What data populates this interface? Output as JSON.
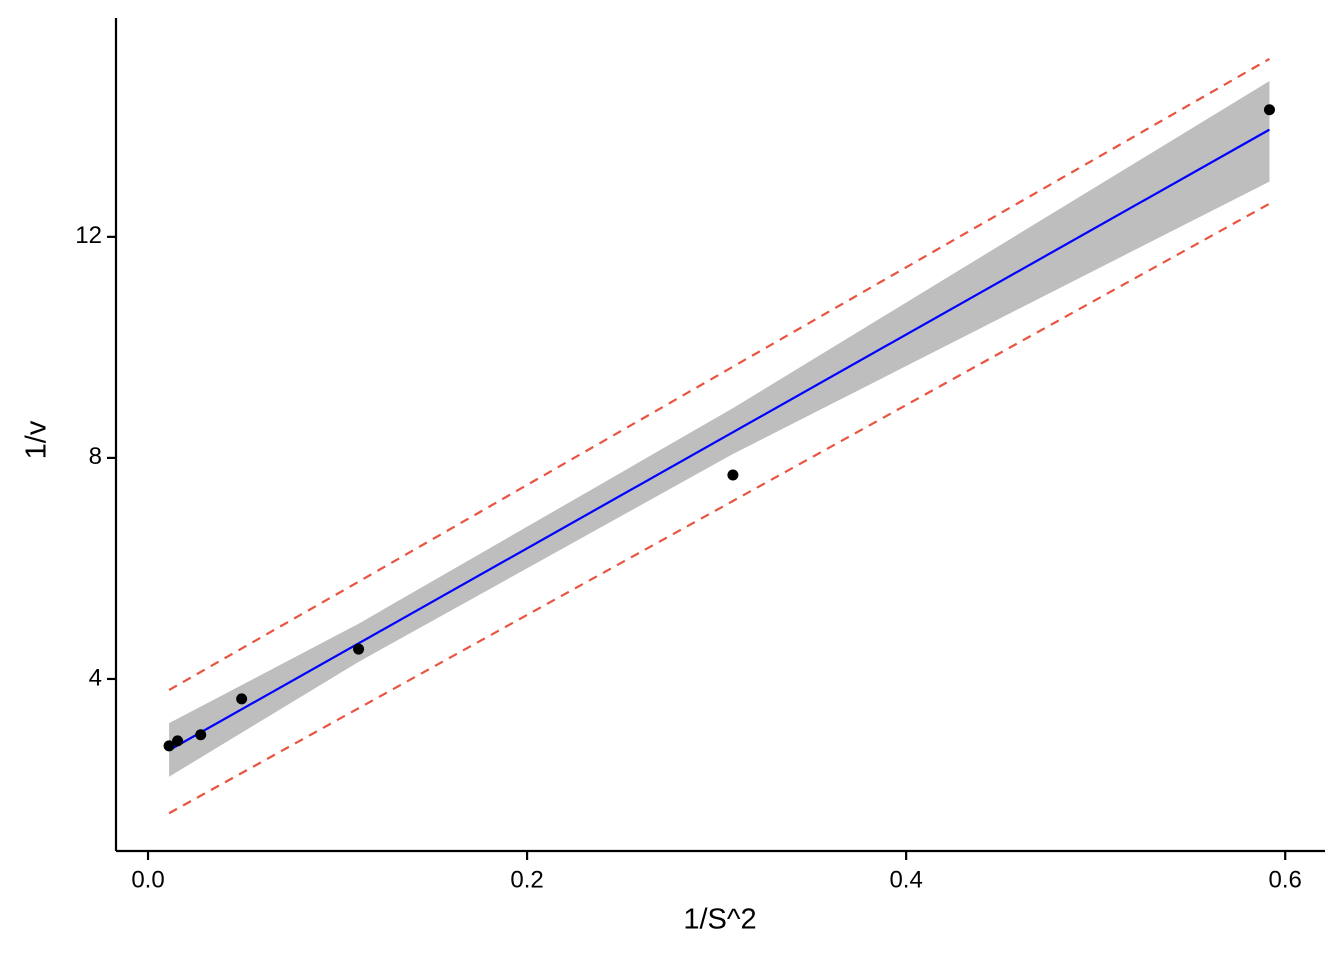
{
  "chart_data": {
    "type": "scatter",
    "x_label": "1/S^2",
    "y_label": "1/v",
    "x": [
      0.0111,
      0.0156,
      0.0278,
      0.0494,
      0.1111,
      0.3086,
      0.5917
    ],
    "values": [
      2.79,
      2.88,
      2.99,
      3.64,
      4.54,
      7.69,
      14.3
    ],
    "color": "#000000",
    "fit": {
      "x": [
        0.0111,
        0.5917
      ],
      "values": [
        2.71,
        13.94
      ],
      "color": "#0000ff"
    },
    "confidence_band": {
      "x": [
        0.0111,
        0.1111,
        0.3086,
        0.5917
      ],
      "lower": [
        2.23,
        4.31,
        8.07,
        13.0
      ],
      "upper": [
        3.2,
        5.0,
        8.9,
        14.82
      ],
      "color": "#bebebe"
    },
    "prediction_interval": {
      "x": [
        0.0111,
        0.1111,
        0.3086,
        0.5917
      ],
      "lower": [
        1.57,
        3.47,
        7.22,
        12.6
      ],
      "upper": [
        3.8,
        5.76,
        9.65,
        15.22
      ],
      "color": "#e8543f"
    },
    "xlim": [
      -0.0169,
      0.621
    ],
    "ylim": [
      0.887,
      15.96
    ],
    "xticks": [
      {
        "value": 0,
        "label": "0.0"
      },
      0.2,
      0.4,
      0.6
    ],
    "yticks": [
      4,
      8,
      12
    ],
    "grid": false
  }
}
